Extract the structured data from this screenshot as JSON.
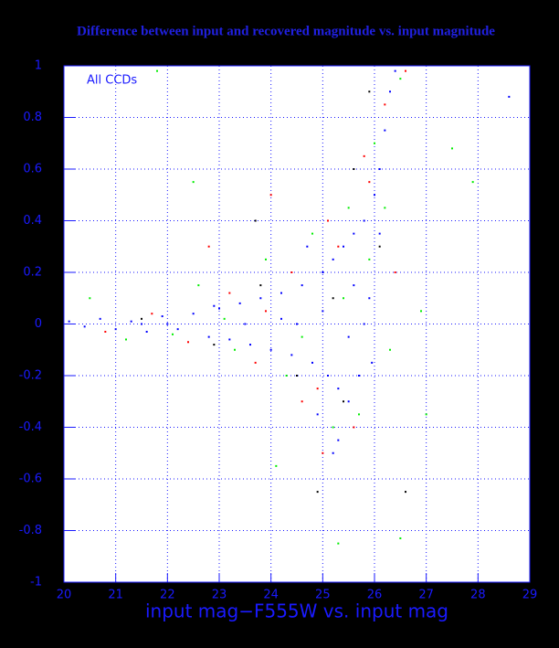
{
  "chart_data": {
    "type": "scatter",
    "title": "Difference between input and recovered magnitude vs. input magnitude",
    "x_label": "input mag−F555W vs. input mag",
    "annotation": "All CCDs",
    "xlim": [
      20,
      29
    ],
    "xticks": [
      20,
      21,
      22,
      23,
      24,
      25,
      26,
      27,
      28,
      29
    ],
    "ylim": [
      -1,
      1
    ],
    "yticks": [
      -1,
      -0.8,
      -0.6,
      -0.4,
      -0.2,
      0,
      0.2,
      0.4,
      0.6,
      0.8,
      1
    ],
    "grid": true,
    "series": [
      {
        "color": "#000000",
        "x": [
          21.5,
          22.9,
          23.8,
          24.5,
          25.2,
          25.6,
          25.9,
          26.6,
          24.9,
          23.7,
          25.4,
          26.1
        ],
        "values": [
          0.02,
          -0.08,
          0.15,
          -0.2,
          0.1,
          0.6,
          0.9,
          -0.65,
          -0.65,
          0.4,
          -0.3,
          0.3
        ]
      },
      {
        "color": "#ff0000",
        "x": [
          20.8,
          21.7,
          22.4,
          23.2,
          23.7,
          24.4,
          24.9,
          25.3,
          25.6,
          25.9,
          26.2,
          25.0,
          24.0,
          22.8,
          26.6,
          25.8,
          25.1,
          24.6,
          23.9,
          26.4
        ],
        "values": [
          -0.03,
          0.04,
          -0.07,
          0.12,
          -0.15,
          0.2,
          -0.25,
          0.3,
          -0.4,
          0.55,
          0.85,
          -0.5,
          0.5,
          0.3,
          0.98,
          0.65,
          0.4,
          -0.3,
          0.05,
          0.2
        ]
      },
      {
        "color": "#00ee00",
        "x": [
          20.5,
          21.2,
          22.6,
          23.3,
          23.9,
          24.3,
          24.8,
          25.2,
          25.5,
          25.7,
          26.0,
          26.5,
          21.8,
          22.5,
          25.3,
          26.5,
          27.5,
          27.9,
          24.1,
          26.3,
          25.9,
          25.4,
          24.6,
          23.1,
          22.1,
          26.2,
          27.0,
          26.9
        ],
        "values": [
          0.1,
          -0.06,
          0.15,
          -0.1,
          0.25,
          -0.2,
          0.35,
          -0.4,
          0.45,
          -0.35,
          0.7,
          0.95,
          0.98,
          0.55,
          -0.85,
          -0.83,
          0.68,
          0.55,
          -0.55,
          -0.1,
          0.25,
          0.1,
          -0.05,
          0.02,
          -0.04,
          0.45,
          -0.35,
          0.05
        ]
      },
      {
        "color": "#0000ff",
        "x": [
          20.1,
          20.4,
          20.7,
          21.0,
          21.3,
          21.6,
          21.9,
          22.2,
          22.5,
          22.8,
          23.0,
          23.2,
          23.4,
          23.6,
          23.8,
          24.0,
          24.2,
          24.4,
          24.6,
          24.8,
          25.0,
          25.1,
          25.2,
          25.3,
          25.4,
          25.5,
          25.6,
          25.7,
          25.8,
          25.9,
          26.0,
          26.1,
          26.2,
          26.3,
          24.5,
          25.0,
          25.5,
          23.5,
          22.0,
          24.9,
          25.3,
          26.1,
          25.8,
          24.2,
          25.6,
          22.9,
          21.5,
          26.4,
          25.2,
          28.6,
          24.7,
          25.95
        ],
        "values": [
          0.01,
          -0.01,
          0.02,
          -0.02,
          0.01,
          -0.03,
          0.03,
          -0.02,
          0.04,
          -0.05,
          0.06,
          -0.06,
          0.08,
          -0.08,
          0.1,
          -0.1,
          0.12,
          -0.12,
          0.15,
          -0.15,
          0.2,
          -0.2,
          0.25,
          -0.25,
          0.3,
          -0.3,
          0.35,
          -0.2,
          0.4,
          0.1,
          0.5,
          0.6,
          0.75,
          0.9,
          0.0,
          0.05,
          -0.05,
          0.0,
          0.0,
          -0.35,
          -0.45,
          0.35,
          0.0,
          0.02,
          0.15,
          0.07,
          0.0,
          0.98,
          -0.5,
          0.88,
          0.3,
          -0.15
        ]
      }
    ]
  }
}
